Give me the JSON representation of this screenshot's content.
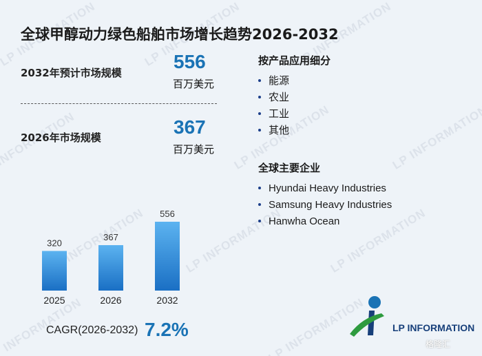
{
  "title": "全球甲醇动力绿色船舶市场增长趋势2026-2032",
  "stats": {
    "forecast_label": "2032年预计市场规模",
    "forecast_value": "556",
    "forecast_unit": "百万美元",
    "current_label": "2026年市场规模",
    "current_value": "367",
    "current_unit": "百万美元"
  },
  "segments": {
    "heading": "按产品应用细分",
    "items": [
      "能源",
      "农业",
      "工业",
      "其他"
    ]
  },
  "companies": {
    "heading": "全球主要企业",
    "items": [
      "Hyundai Heavy Industries",
      "Samsung Heavy Industries",
      "Hanwha Ocean"
    ]
  },
  "chart_data": {
    "type": "bar",
    "categories": [
      "2025",
      "2026",
      "2032"
    ],
    "values": [
      320,
      367,
      556
    ],
    "title": "",
    "xlabel": "",
    "ylabel": "",
    "ylim": [
      0,
      600
    ],
    "grid": false,
    "colors": {
      "bar_top": "#5cb3f0",
      "bar_bottom": "#1a6fc4"
    }
  },
  "cagr": {
    "label": "CAGR(2026-2032)",
    "value": "7.2%"
  },
  "brand": {
    "name": "LP INFORMATION",
    "watermark": "LP INFORMATION",
    "badge": "格隆汇",
    "colors": {
      "accent": "#1a73b5",
      "logo_blue": "#173f7a",
      "logo_green": "#2e9b3f"
    }
  }
}
